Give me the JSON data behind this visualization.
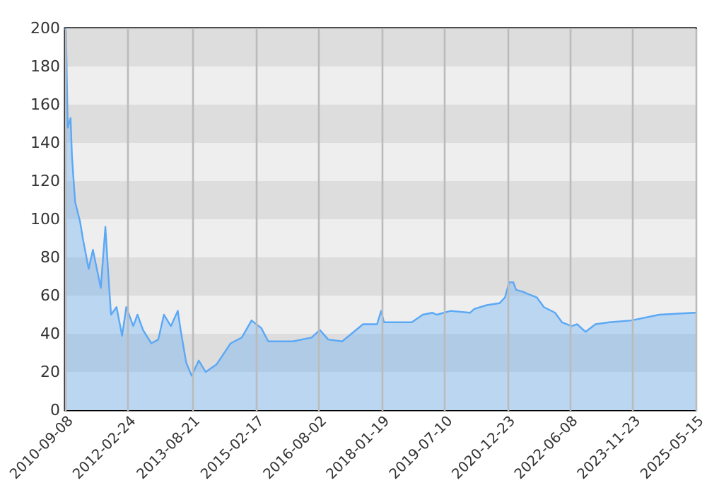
{
  "chart_data": {
    "type": "area",
    "x": [
      "2010-09-08",
      "2010-09-16",
      "2010-10-01",
      "2010-10-25",
      "2010-11-06",
      "2010-11-18",
      "2010-12-03",
      "2011-01-13",
      "2011-02-09",
      "2011-03-28",
      "2011-05-03",
      "2011-07-09",
      "2011-08-17",
      "2011-09-10",
      "2011-10-04",
      "2011-11-20",
      "2012-01-06",
      "2012-02-11",
      "2012-04-10",
      "2012-05-16",
      "2012-07-02",
      "2012-09-11",
      "2012-11-09",
      "2012-12-27",
      "2013-02-24",
      "2013-04-24",
      "2013-05-18",
      "2013-07-04",
      "2013-08-20",
      "2013-10-19",
      "2013-12-17",
      "2014-03-20",
      "2014-07-17",
      "2014-10-20",
      "2015-01-11",
      "2015-04-04",
      "2015-06-02",
      "2015-09-05",
      "2015-12-29",
      "2016-06-04",
      "2016-08-14",
      "2016-10-24",
      "2017-02-20",
      "2017-08-16",
      "2017-12-13",
      "2018-01-17",
      "2018-02-10",
      "2018-05-15",
      "2018-10-04",
      "2019-01-06",
      "2019-03-30",
      "2019-05-05",
      "2019-08-31",
      "2020-02-12",
      "2020-03-19",
      "2020-07-04",
      "2020-10-19",
      "2020-12-05",
      "2021-01-10",
      "2021-02-14",
      "2021-03-10",
      "2021-05-08",
      "2021-06-13",
      "2021-09-03",
      "2021-11-01",
      "2022-02-04",
      "2022-04-04",
      "2022-06-25",
      "2022-08-11",
      "2022-10-22",
      "2023-01-13",
      "2023-05-11",
      "2023-11-16",
      "2024-07-10",
      "2025-05-03",
      "2025-05-15"
    ],
    "series": [
      {
        "color": "#5ba8f5",
        "values": [
          200,
          199,
          148,
          153,
          133,
          122,
          109,
          99,
          89,
          74,
          84,
          64,
          96,
          72,
          50,
          54,
          39,
          54,
          44,
          50,
          42,
          35,
          37,
          50,
          44,
          52,
          42,
          25,
          18,
          26,
          20,
          24,
          35,
          38,
          47,
          43,
          36,
          36,
          36,
          38,
          42,
          37,
          36,
          45,
          45,
          52,
          46,
          46,
          46,
          50,
          51,
          50,
          52,
          51,
          53,
          55,
          56,
          59,
          67,
          67,
          63,
          62,
          61,
          59,
          54,
          51,
          46,
          44,
          45,
          41,
          45,
          46,
          47,
          50,
          51,
          51
        ]
      }
    ],
    "xlim": [
      "2010-09-08",
      "2025-05-15"
    ],
    "xticks": [
      "2010-09-08",
      "2012-02-24",
      "2013-08-21",
      "2015-02-17",
      "2016-08-02",
      "2018-01-19",
      "2019-07-10",
      "2020-12-23",
      "2022-06-08",
      "2023-11-23",
      "2025-05-15"
    ],
    "ylim": [
      0,
      200
    ],
    "yticks": [
      0,
      20,
      40,
      60,
      80,
      100,
      120,
      140,
      160,
      180,
      200
    ],
    "grid": true
  }
}
